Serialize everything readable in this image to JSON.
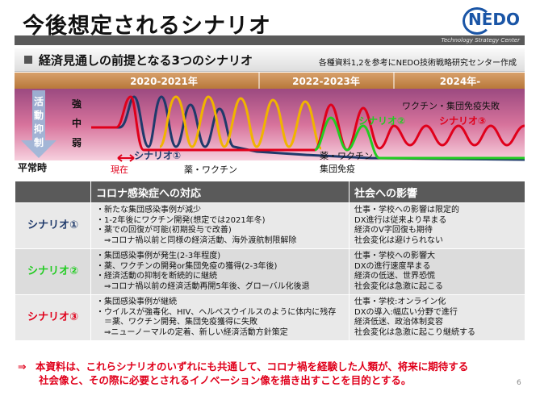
{
  "title": "今後想定されるシナリオ",
  "logo": "NEDO",
  "tsc": "Technology Strategy Center",
  "subhead": {
    "title": "経済見通しの前提となる3つのシナリオ",
    "note": "各種資料1,2を参考にNEDO技術戦略研究センター作成"
  },
  "timeline": {
    "periods": [
      "2020-2021年",
      "2022-2023年",
      "2024年-"
    ],
    "axis_label": "活動抑制",
    "levels": [
      "強",
      "中",
      "弱"
    ],
    "baseline": "平常時",
    "now": "現在",
    "annotations": {
      "vaccine": "薬・ワクチン",
      "herd": "薬・ワクチン\n集団免疫",
      "herd_top": "ワクチン・集団免疫失敗"
    },
    "scenario_labels": [
      "シナリオ①",
      "シナリオ②",
      "シナリオ③"
    ],
    "colors": {
      "s1": "#1f3a6b",
      "s2": "#22cc22",
      "s3": "#e0001b",
      "wave": "#f0b400"
    }
  },
  "matrix": {
    "headers": [
      "",
      "コロナ感染症への対応",
      "社会への影響"
    ],
    "rows": [
      {
        "label": "シナリオ①",
        "color": "#1f3a6b",
        "response": [
          "・新たな集団感染事例が減少",
          "・1-2年後にワクチン開発(想定では2021年冬)",
          "・薬での回復が可能(初期投与で改善)",
          "　⇒コロナ禍以前と同様の経済活動、海外渡航制限解除"
        ],
        "impact": [
          "仕事・学校への影響は限定的",
          "DX進行は従来より早まる",
          "経済のV字回復も期待",
          "社会変化は避けられない"
        ]
      },
      {
        "label": "シナリオ②",
        "color": "#22cc22",
        "response": [
          "・集団感染事例が発生(2-3年程度)",
          "・薬、ワクチンの開発or集団免疫の獲得(2-3年後)",
          "・経済活動の抑制を断続的に継続",
          "　⇒コロナ禍以前の経済活動再開5年後、グローバル化後退"
        ],
        "impact": [
          "仕事・学校への影響大",
          "DXの進行速度早まる",
          "経済の低迷、世界恐慌",
          "社会変化は急激に起こる"
        ]
      },
      {
        "label": "シナリオ③",
        "color": "#e0001b",
        "response": [
          "・集団感染事例が継続",
          "・ウイルスが強毒化、HIV、ヘルペスウイルスのように体内に残存",
          "　＝薬、ワクチン開発、集団免疫獲得に失敗",
          "　⇒ニューノーマルの定着、新しい経済活動方針策定"
        ],
        "impact": [
          "仕事・学校:オンライン化",
          "DXの導入:幅広い分野で進行",
          "経済低迷、政治体制変容",
          "社会変化は急激に起こり継続する"
        ]
      }
    ]
  },
  "conclusion": {
    "arrow": "⇒",
    "line1": "本資料は、これらシナリオのいずれにも共通して、コロナ禍を経験した人類が、将来に期待する",
    "line2": "社会像と、その際に必要とされるイノベーション像を描き出すことを目的とする。"
  },
  "page_number": "6"
}
